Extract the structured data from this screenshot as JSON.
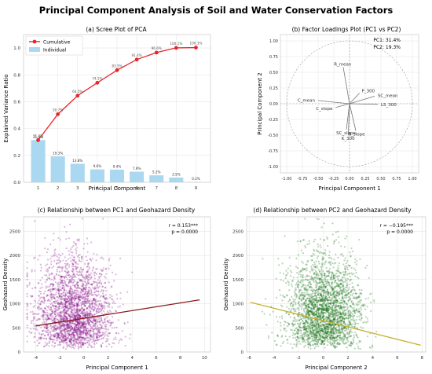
{
  "figure": {
    "title": "Principal Component Analysis of Soil and Water Conservation Factors"
  },
  "chart_data": [
    {
      "id": "scree",
      "type": "bar",
      "title": "(a) Scree Plot of PCA",
      "xlabel": "Principal Component",
      "ylabel": "Explained Variance Ratio",
      "categories": [
        "1",
        "2",
        "3",
        "4",
        "5",
        "6",
        "7",
        "8",
        "9"
      ],
      "ylim": [
        0,
        1.1
      ],
      "yticks": [
        "0.0",
        "0.2",
        "0.4",
        "0.6",
        "0.8",
        "1.0"
      ],
      "series": [
        {
          "name": "Individual",
          "type": "bar",
          "color": "#aad8f0",
          "values": [
            0.314,
            0.193,
            0.138,
            0.096,
            0.094,
            0.079,
            0.052,
            0.035,
            0.002
          ],
          "labels": [
            "31.4%",
            "19.3%",
            "13.8%",
            "9.6%",
            "9.4%",
            "7.9%",
            "5.2%",
            "3.5%",
            "0.2%"
          ]
        },
        {
          "name": "Cumulative",
          "type": "line",
          "color": "#e8262a",
          "values": [
            0.314,
            0.507,
            0.645,
            0.741,
            0.835,
            0.914,
            0.966,
            1.001,
            1.003
          ],
          "labels": [
            "31.4%",
            "50.7%",
            "64.5%",
            "74.1%",
            "83.5%",
            "91.4%",
            "96.6%",
            "100.1%",
            "100.3%"
          ]
        }
      ],
      "legend": "top-left",
      "grid": true
    },
    {
      "id": "loadings",
      "type": "scatter",
      "title": "(b) Factor Loadings Plot (PC1 vs PC2)",
      "xlabel": "Principal Component 1",
      "ylabel": "Principal Component 2",
      "xlim": [
        -1.1,
        1.1
      ],
      "ylim": [
        -1.1,
        1.1
      ],
      "xticks": [
        "-1.00",
        "-0.75",
        "-0.50",
        "-0.25",
        "0.00",
        "0.25",
        "0.50",
        "0.75",
        "1.00"
      ],
      "yticks": [
        "-1.00",
        "-0.75",
        "-0.50",
        "-0.25",
        "0.00",
        "0.25",
        "0.50",
        "0.75",
        "1.00"
      ],
      "annotations": [
        "PC1: 31.4%",
        "PC2: 19.3%"
      ],
      "vectors": [
        {
          "name": "R_mean",
          "x": -0.1,
          "y": 0.58
        },
        {
          "name": "P_300",
          "x": 0.16,
          "y": 0.17
        },
        {
          "name": "SC_mean",
          "x": 0.4,
          "y": 0.12
        },
        {
          "name": "LS_300",
          "x": 0.45,
          "y": -0.01
        },
        {
          "name": "C_mean",
          "x": -0.5,
          "y": 0.05
        },
        {
          "name": "C_slope",
          "x": -0.22,
          "y": -0.06
        },
        {
          "name": "SC_slope",
          "x": -0.05,
          "y": -0.41
        },
        {
          "name": "R_slope",
          "x": 0.1,
          "y": -0.43
        },
        {
          "name": "K_300",
          "x": -0.02,
          "y": -0.5
        }
      ],
      "grid": true
    },
    {
      "id": "pc1-geohazard",
      "type": "scatter",
      "title": "(c) Relationship between PC1 and Geohazard Density",
      "xlabel": "Principal Component 1",
      "ylabel": "Geohazard Density",
      "xlim": [
        -5,
        10.5
      ],
      "ylim": [
        0,
        2800
      ],
      "xticks": [
        "-4",
        "-2",
        "0",
        "2",
        "4",
        "6",
        "8",
        "10"
      ],
      "yticks": [
        "0",
        "500",
        "1000",
        "1500",
        "2000",
        "2500"
      ],
      "point_color": "#800080",
      "trend_color": "#8b1a1a",
      "trend": {
        "x": [
          -4,
          9.6
        ],
        "y": [
          540,
          1080
        ]
      },
      "annotations": [
        "r = 0.153***",
        "p = 0.0000"
      ],
      "grid": true
    },
    {
      "id": "pc2-geohazard",
      "type": "scatter",
      "title": "(d) Relationship between PC2 and Geohazard Density",
      "xlabel": "Principal Component 2",
      "ylabel": "Geohazard Density",
      "xlim": [
        -6.2,
        8.3
      ],
      "ylim": [
        0,
        2800
      ],
      "xticks": [
        "-6",
        "-4",
        "-2",
        "0",
        "2",
        "4",
        "6",
        "8"
      ],
      "yticks": [
        "0",
        "500",
        "1000",
        "1500",
        "2000",
        "2500"
      ],
      "point_color": "#006400",
      "trend_color": "#c8b02e",
      "trend": {
        "x": [
          -5.9,
          7.9
        ],
        "y": [
          1030,
          140
        ]
      },
      "annotations": [
        "r = −0.195***",
        "p = 0.0000"
      ],
      "grid": true
    }
  ]
}
